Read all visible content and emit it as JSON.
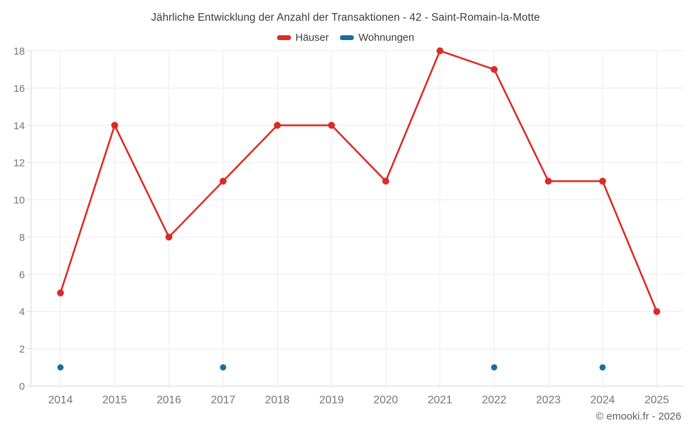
{
  "footer": {
    "copyright": "© emooki.fr - 2026"
  },
  "chart_data": {
    "type": "line",
    "title": "Jährliche Entwicklung der Anzahl der Transaktionen - 42 - Saint-Romain-la-Motte",
    "categories": [
      "2014",
      "2015",
      "2016",
      "2017",
      "2018",
      "2019",
      "2020",
      "2021",
      "2022",
      "2023",
      "2024",
      "2025"
    ],
    "series": [
      {
        "name": "Häuser",
        "type": "line",
        "color": "#dc2a27",
        "values": [
          5,
          14,
          8,
          11,
          14,
          14,
          11,
          18,
          17,
          11,
          11,
          4
        ]
      },
      {
        "name": "Wohnungen",
        "type": "scatter",
        "color": "#176fa5",
        "values": [
          1,
          null,
          null,
          1,
          null,
          null,
          null,
          null,
          1,
          null,
          1,
          null
        ]
      }
    ],
    "xlabel": "",
    "ylabel": "",
    "ylim": [
      0,
      18
    ],
    "ytick_step": 2,
    "grid": true,
    "legend_position": "top",
    "colors": {
      "grid": "#ececec",
      "axis": "#d9d9d9",
      "tick_label": "#757575",
      "title": "#3c3c3c"
    }
  }
}
